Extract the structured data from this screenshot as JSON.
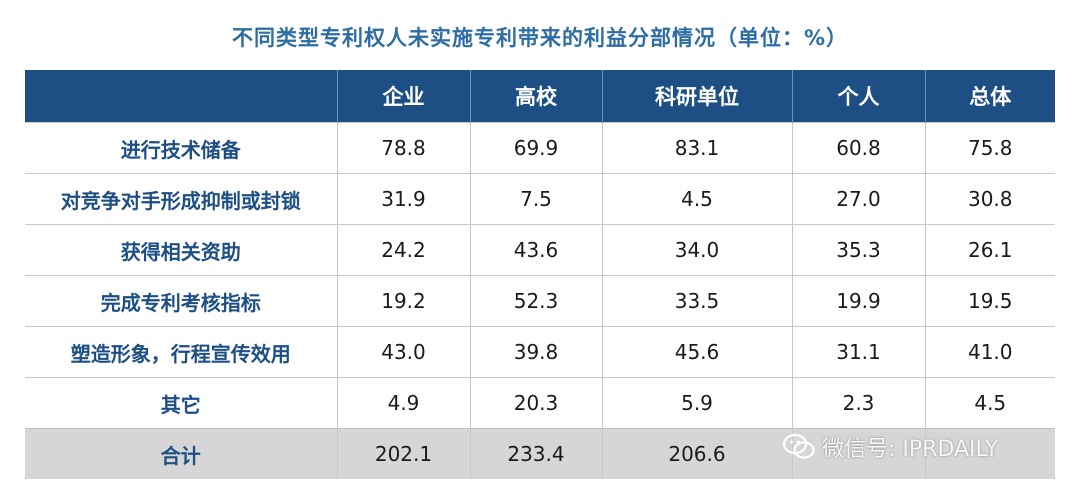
{
  "title": "不同类型专利权人未实施专利带来的利益分部情况（单位：%）",
  "table": {
    "headers": [
      "",
      "企业",
      "高校",
      "科研单位",
      "个人",
      "总体"
    ],
    "rows": [
      {
        "label": "进行技术储备",
        "values": [
          "78.8",
          "69.9",
          "83.1",
          "60.8",
          "75.8"
        ]
      },
      {
        "label": "对竞争对手形成抑制或封锁",
        "values": [
          "31.9",
          "7.5",
          "4.5",
          "27.0",
          "30.8"
        ]
      },
      {
        "label": "获得相关资助",
        "values": [
          "24.2",
          "43.6",
          "34.0",
          "35.3",
          "26.1"
        ]
      },
      {
        "label": "完成专利考核指标",
        "values": [
          "19.2",
          "52.3",
          "33.5",
          "19.9",
          "19.5"
        ]
      },
      {
        "label": "塑造形象，行程宣传效用",
        "values": [
          "43.0",
          "39.8",
          "45.6",
          "31.1",
          "41.0"
        ]
      },
      {
        "label": "其它",
        "values": [
          "4.9",
          "20.3",
          "5.9",
          "2.3",
          "4.5"
        ]
      }
    ],
    "total": {
      "label": "合计",
      "values": [
        "202.1",
        "233.4",
        "206.6",
        "",
        ""
      ]
    }
  },
  "watermark": {
    "text": "微信号: IPRDAILY",
    "icon": "wechat-icon"
  },
  "colors": {
    "title": "#2e6da4",
    "header_bg": "#1d4f85",
    "label": "#1d4f85",
    "total_bg": "#d6d6d6"
  }
}
